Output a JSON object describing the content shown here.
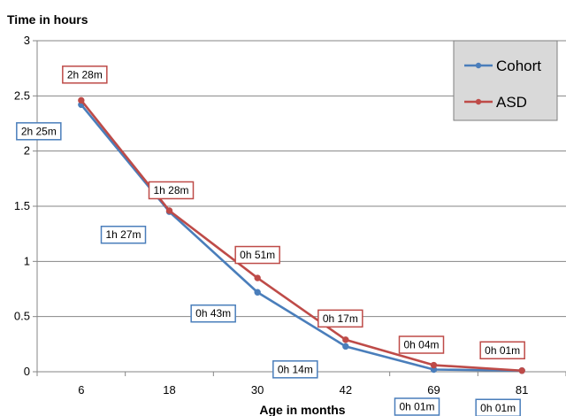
{
  "chart_data": {
    "type": "line",
    "title": "",
    "ylabel": "Time in hours",
    "xlabel": "Age in months",
    "categories": [
      "6",
      "18",
      "30",
      "42",
      "69",
      "81"
    ],
    "ylim": [
      0,
      3
    ],
    "yticks": [
      "0",
      "0.5",
      "1",
      "1.5",
      "2",
      "2.5",
      "3"
    ],
    "grid": true,
    "legend_position": "top-right",
    "series": [
      {
        "name": "Cohort",
        "color": "#4a7ebb",
        "values": [
          2.42,
          1.45,
          0.72,
          0.23,
          0.02,
          0.01
        ],
        "labels": [
          "2h 25m",
          "1h 27m",
          "0h 43m",
          "0h 14m",
          "0h 01m",
          "0h 01m"
        ]
      },
      {
        "name": "ASD",
        "color": "#be4b48",
        "values": [
          2.46,
          1.46,
          0.85,
          0.29,
          0.06,
          0.01
        ],
        "labels": [
          "2h 28m",
          "1h 28m",
          "0h 51m",
          "0h 17m",
          "0h 04m",
          "0h 01m"
        ]
      }
    ]
  }
}
